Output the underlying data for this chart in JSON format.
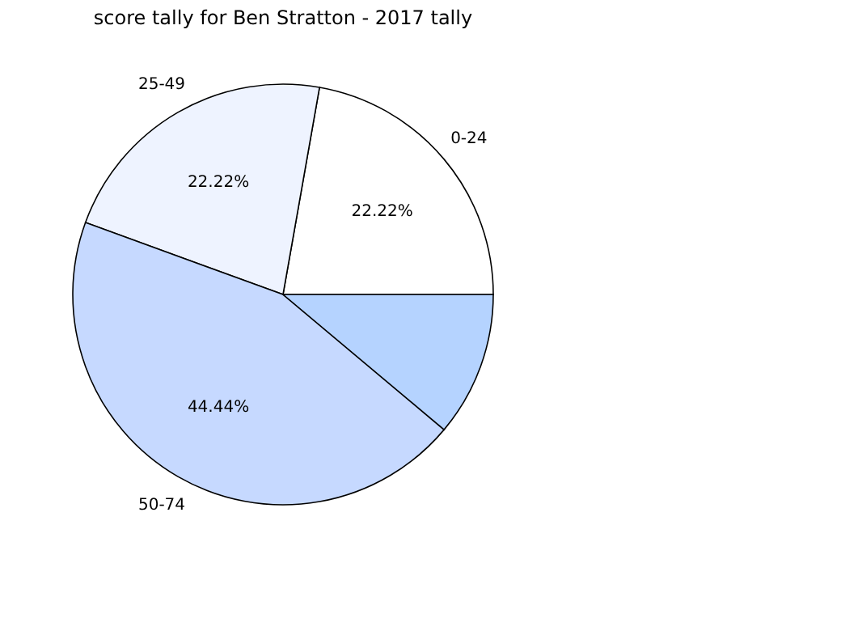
{
  "chart_data": {
    "type": "pie",
    "title": "score tally for Ben Stratton - 2017 tally",
    "categories": [
      "0-24",
      "25-49",
      "50-74",
      null
    ],
    "values": [
      22.22,
      22.22,
      44.44,
      11.11
    ],
    "colors": [
      "#ffffff",
      "#eef3ff",
      "#c6d9ff",
      "#b5d3ff"
    ],
    "value_labels": [
      "22.22%",
      "22.22%",
      "44.44%",
      null
    ],
    "legend": false
  }
}
